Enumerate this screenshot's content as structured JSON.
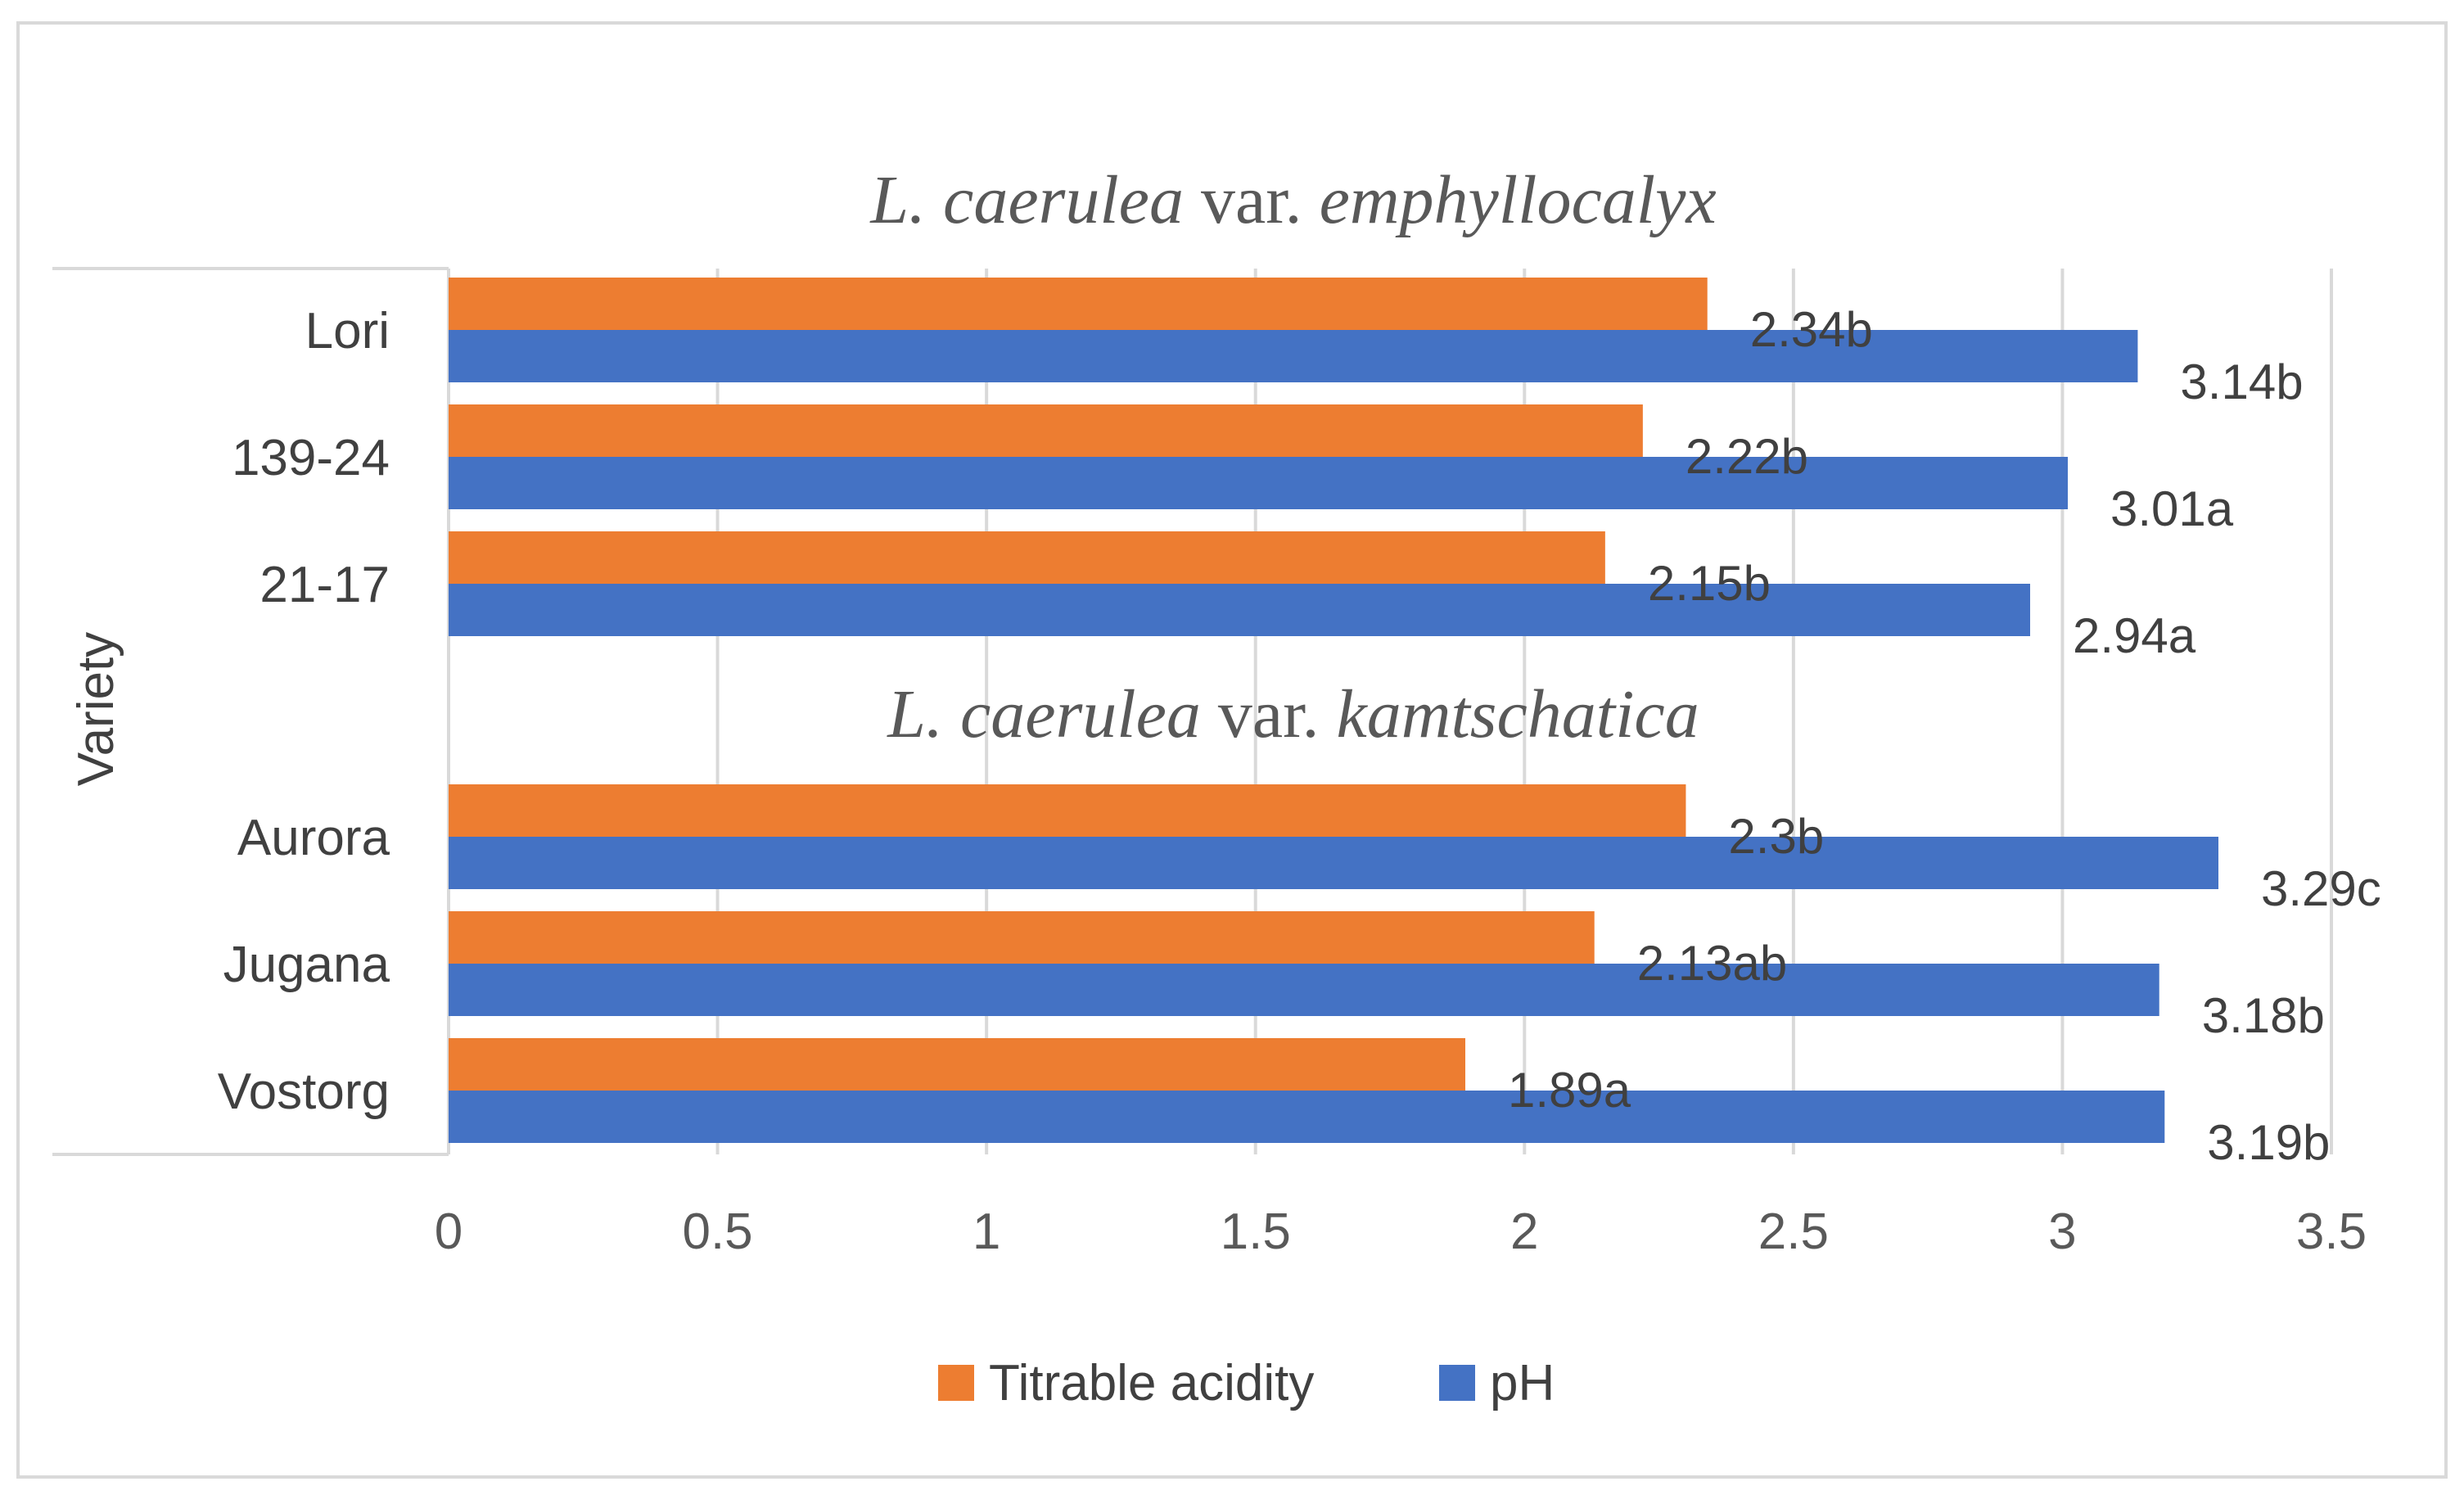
{
  "chart_data": {
    "type": "bar",
    "orientation": "horizontal",
    "ylabel": "Variety",
    "xlim": [
      0,
      3.5
    ],
    "x_ticks": [
      "0",
      "0.5",
      "1",
      "1.5",
      "2",
      "2.5",
      "3",
      "3.5"
    ],
    "grid": true,
    "legend_position": "bottom",
    "groups": [
      {
        "title_genus": "L. caerulea",
        "title_var": "var.",
        "title_epithet": "emphyllocalyx",
        "categories": [
          "Lori",
          "139-24",
          "21-17"
        ],
        "series": [
          {
            "name": "Titrable acidity",
            "values": [
              2.34,
              2.22,
              2.15
            ],
            "labels": [
              "2.34b",
              "2.22b",
              "2.15b"
            ]
          },
          {
            "name": "pH",
            "values": [
              3.14,
              3.01,
              2.94
            ],
            "labels": [
              "3.14b",
              "3.01a",
              "2.94a"
            ]
          }
        ]
      },
      {
        "title_genus": "L. caerulea",
        "title_var": "var.",
        "title_epithet": "kamtschatica",
        "categories": [
          "Aurora",
          "Jugana",
          "Vostorg"
        ],
        "series": [
          {
            "name": "Titrable acidity",
            "values": [
              2.3,
              2.13,
              1.89
            ],
            "labels": [
              "2.3b",
              "2.13ab",
              "1.89a"
            ]
          },
          {
            "name": "pH",
            "values": [
              3.29,
              3.18,
              3.19
            ],
            "labels": [
              "3.29c",
              "3.18b",
              "3.19b"
            ]
          }
        ]
      }
    ],
    "series_colors": {
      "Titrable acidity": "#ED7D31",
      "pH": "#4472C4"
    },
    "legend": [
      "Titrable acidity",
      "pH"
    ]
  }
}
